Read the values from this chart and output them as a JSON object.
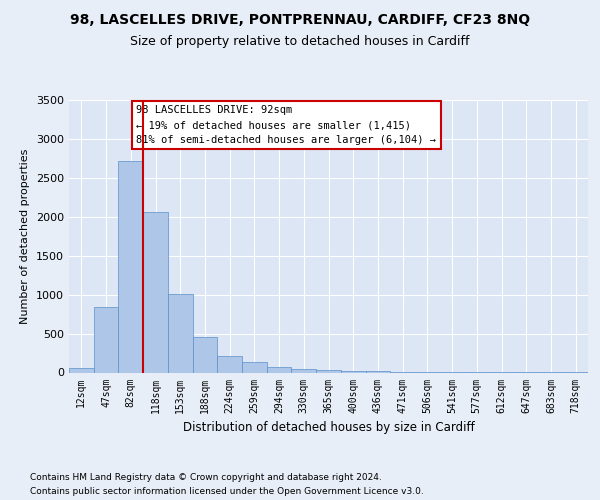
{
  "title1": "98, LASCELLES DRIVE, PONTPRENNAU, CARDIFF, CF23 8NQ",
  "title2": "Size of property relative to detached houses in Cardiff",
  "xlabel": "Distribution of detached houses by size in Cardiff",
  "ylabel": "Number of detached properties",
  "categories": [
    "12sqm",
    "47sqm",
    "82sqm",
    "118sqm",
    "153sqm",
    "188sqm",
    "224sqm",
    "259sqm",
    "294sqm",
    "330sqm",
    "365sqm",
    "400sqm",
    "436sqm",
    "471sqm",
    "506sqm",
    "541sqm",
    "577sqm",
    "612sqm",
    "647sqm",
    "683sqm",
    "718sqm"
  ],
  "values": [
    60,
    840,
    2720,
    2060,
    1010,
    450,
    210,
    130,
    70,
    50,
    30,
    20,
    15,
    10,
    8,
    5,
    3,
    2,
    1,
    1,
    1
  ],
  "bar_color": "#aec6e8",
  "bar_edgecolor": "#5b8fc9",
  "vline_color": "#cc0000",
  "annotation_text": "98 LASCELLES DRIVE: 92sqm\n← 19% of detached houses are smaller (1,415)\n81% of semi-detached houses are larger (6,104) →",
  "annotation_box_edgecolor": "#cc0000",
  "annotation_box_facecolor": "white",
  "ylim": [
    0,
    3500
  ],
  "yticks": [
    0,
    500,
    1000,
    1500,
    2000,
    2500,
    3000,
    3500
  ],
  "footnote1": "Contains HM Land Registry data © Crown copyright and database right 2024.",
  "footnote2": "Contains public sector information licensed under the Open Government Licence v3.0.",
  "bg_color": "#e8eef7",
  "plot_bg_color": "#dce6f5",
  "vline_pos": 2.5
}
